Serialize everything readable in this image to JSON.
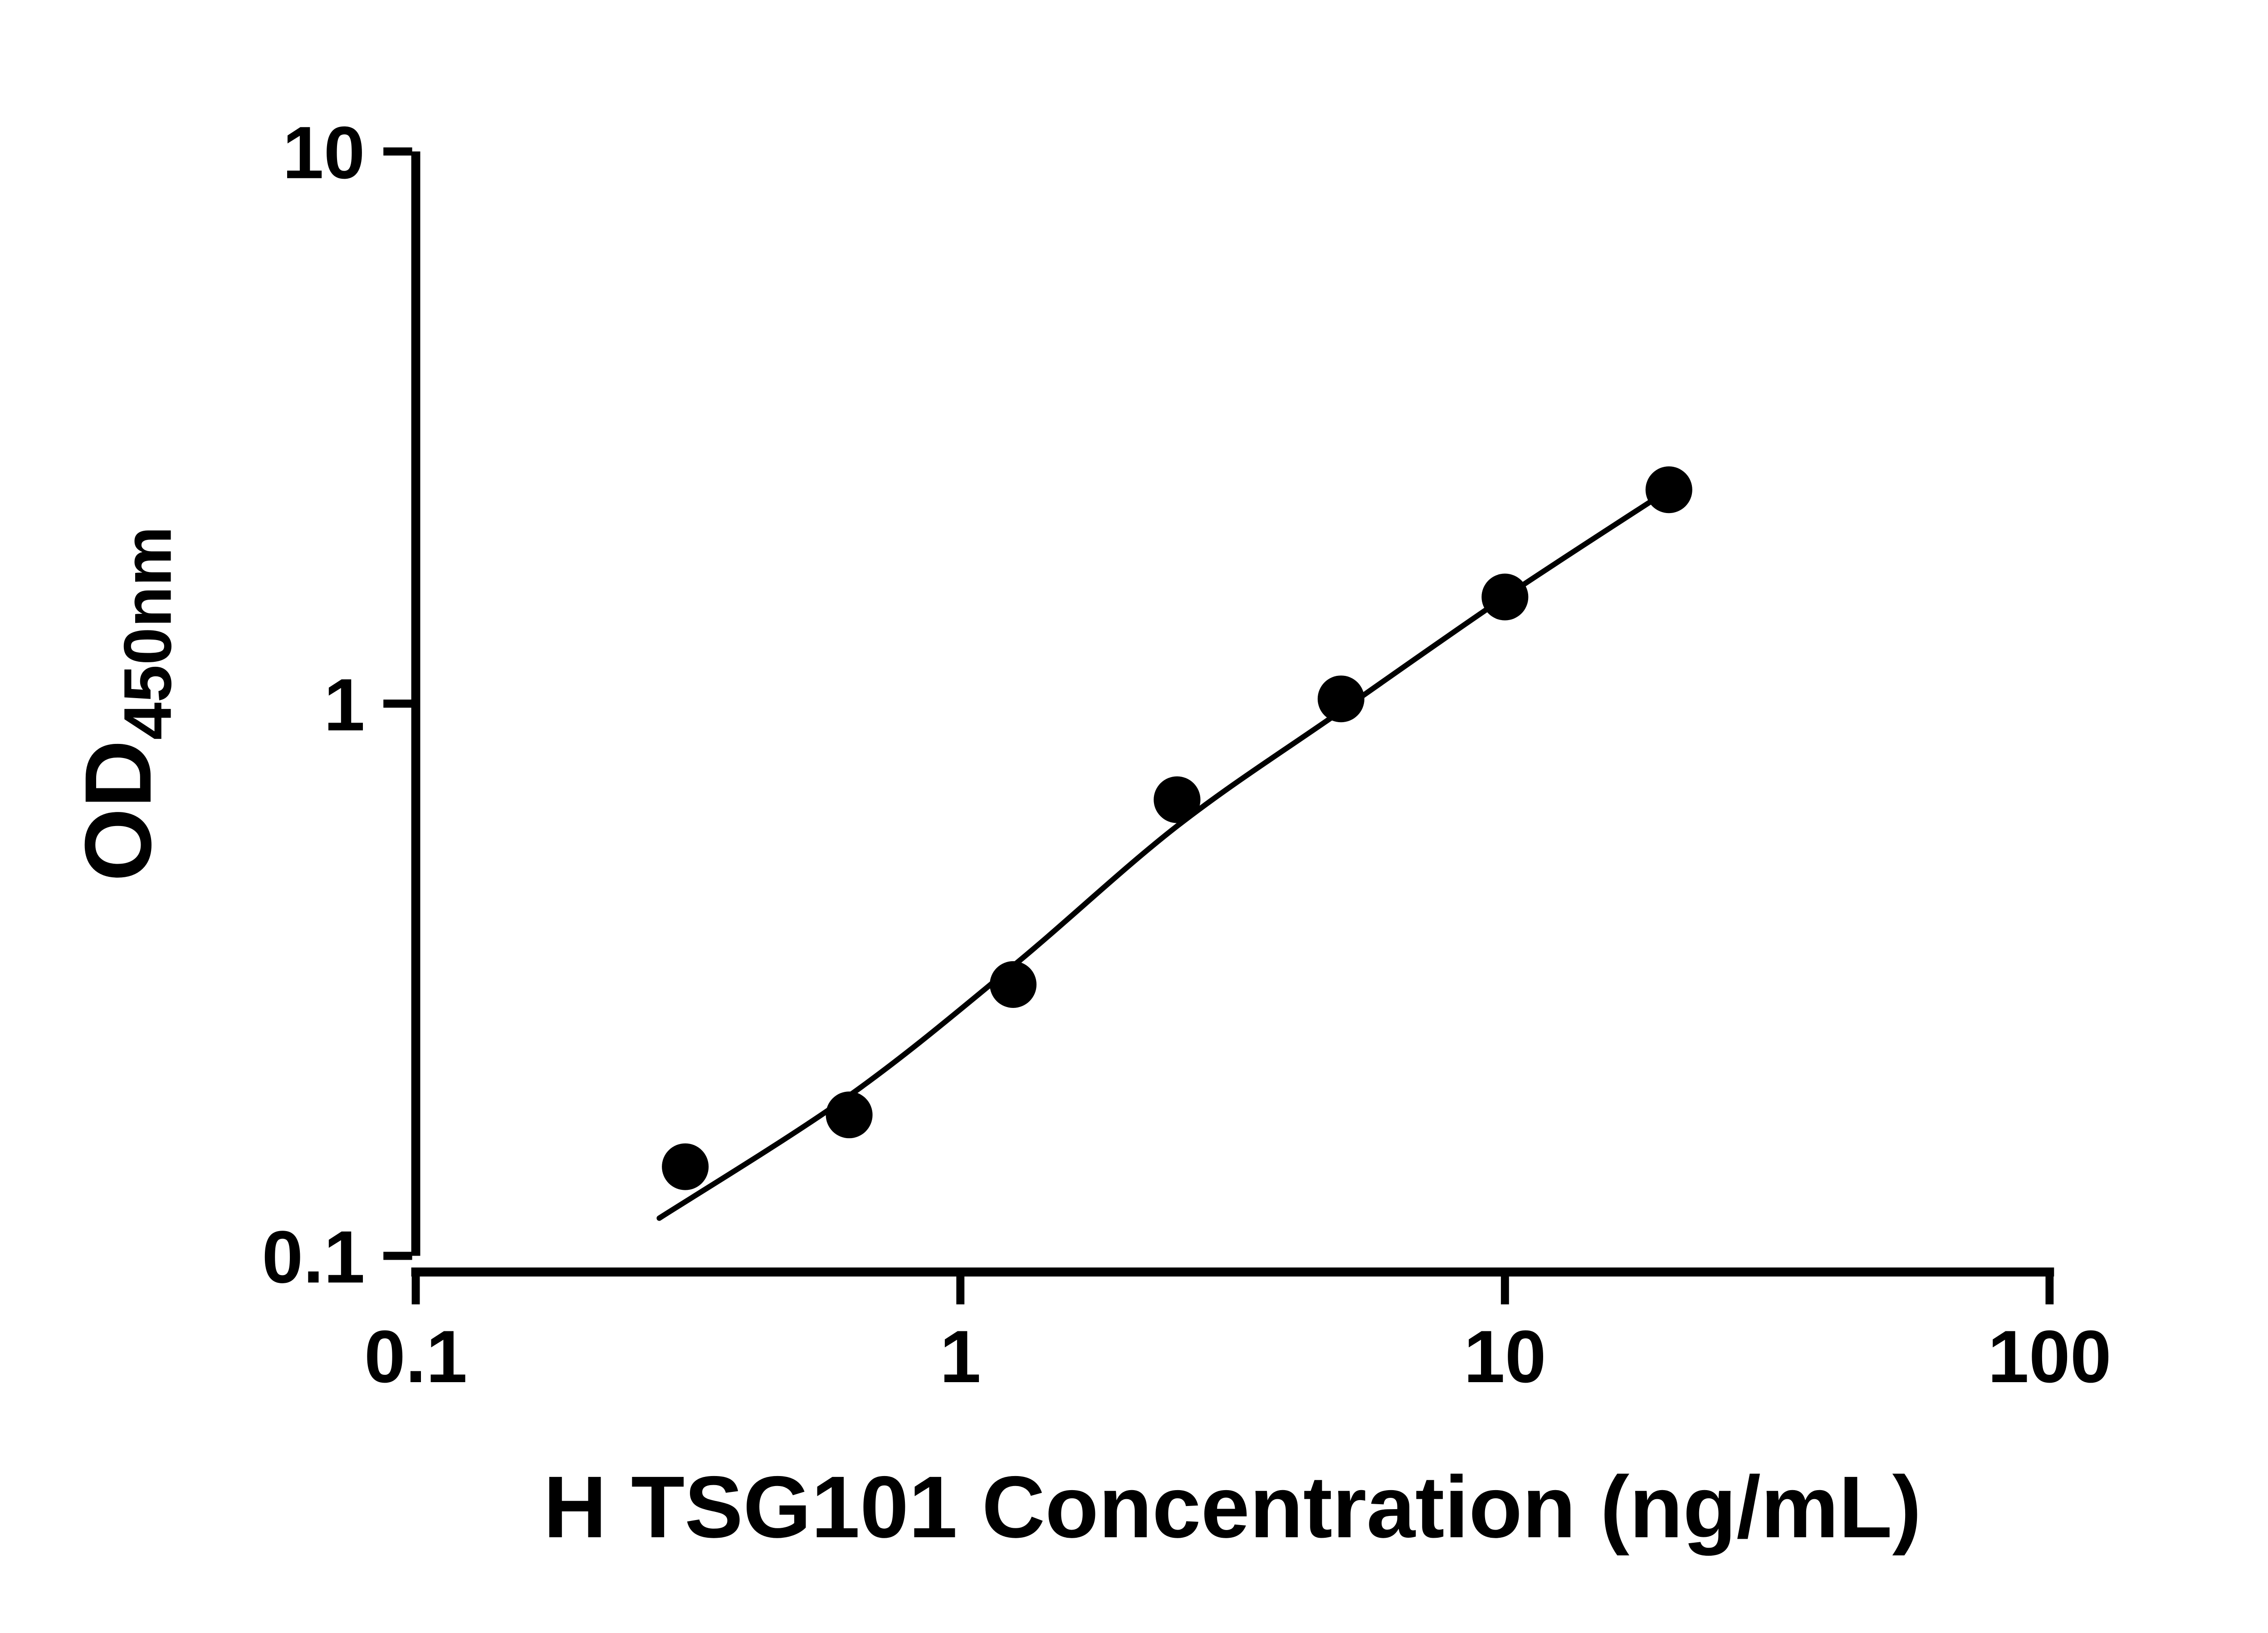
{
  "chart_data": {
    "type": "scatter",
    "title": "",
    "xlabel": "H TSG101 Concentration (ng/mL)",
    "ylabel_main": "OD",
    "ylabel_sub": "450nm",
    "x_scale": "log",
    "y_scale": "log",
    "xlim": [
      0.1,
      100
    ],
    "ylim": [
      0.1,
      10
    ],
    "x_ticks": [
      0.1,
      1,
      10,
      100
    ],
    "x_tick_labels": [
      "0.1",
      "1",
      "10",
      "100"
    ],
    "y_ticks": [
      10,
      1,
      0.1
    ],
    "y_tick_labels": [
      "10",
      "1",
      "0.1"
    ],
    "grid": false,
    "legend": null,
    "series": [
      {
        "name": "standard-curve-points",
        "marker": "filled-circle",
        "x": [
          0.3125,
          0.625,
          1.25,
          2.5,
          5,
          10,
          20
        ],
        "y": [
          0.145,
          0.18,
          0.31,
          0.67,
          1.02,
          1.56,
          2.44
        ]
      }
    ],
    "fit_curve": {
      "name": "fitted-standard-curve",
      "x": [
        0.28,
        0.625,
        1.25,
        2.5,
        5,
        10,
        20
      ],
      "y": [
        0.117,
        0.195,
        0.335,
        0.6,
        0.97,
        1.56,
        2.44
      ]
    },
    "colors": {
      "point": "#000000",
      "line": "#000000",
      "axis": "#000000",
      "background": "#ffffff"
    }
  }
}
